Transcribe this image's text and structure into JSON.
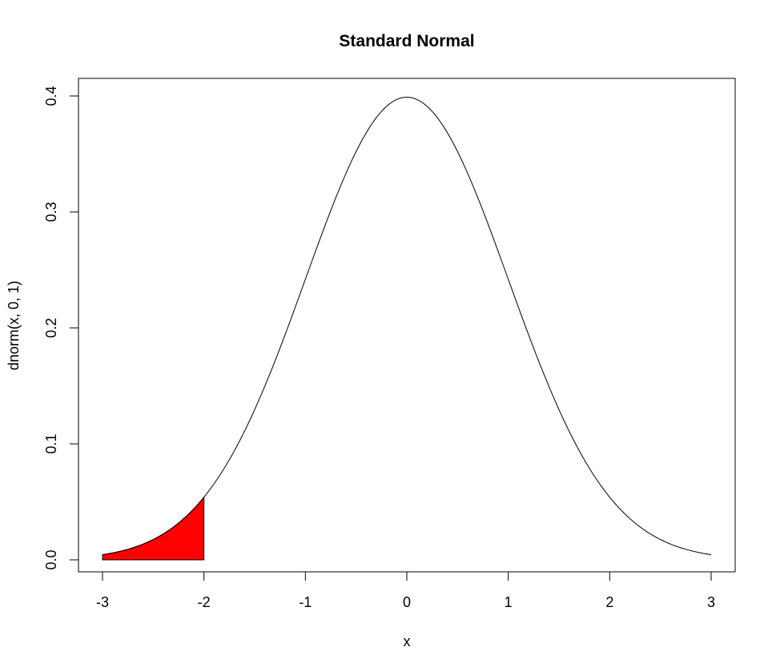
{
  "chart_data": {
    "type": "line",
    "title": "Standard Normal",
    "xlabel": "x",
    "ylabel": "dnorm(x, 0, 1)",
    "xlim": [
      -3,
      3
    ],
    "ylim": [
      0,
      0.4
    ],
    "x_ticks": [
      -3,
      -2,
      -1,
      0,
      1,
      2,
      3
    ],
    "x_tick_labels": [
      "-3",
      "-2",
      "-1",
      "0",
      "1",
      "2",
      "3"
    ],
    "y_ticks": [
      0.0,
      0.1,
      0.2,
      0.3,
      0.4
    ],
    "y_tick_labels": [
      "0.0",
      "0.1",
      "0.2",
      "0.3",
      "0.4"
    ],
    "grid": false,
    "series": [
      {
        "x": [
          -3.0,
          -2.75,
          -2.5,
          -2.25,
          -2.0,
          -1.75,
          -1.5,
          -1.25,
          -1.0,
          -0.75,
          -0.5,
          -0.25,
          0.0,
          0.25,
          0.5,
          0.75,
          1.0,
          1.25,
          1.5,
          1.75,
          2.0,
          2.25,
          2.5,
          2.75,
          3.0
        ],
        "values": [
          0.0044,
          0.0091,
          0.0175,
          0.0317,
          0.054,
          0.0863,
          0.1295,
          0.1826,
          0.242,
          0.3011,
          0.3521,
          0.3867,
          0.3989,
          0.3867,
          0.3521,
          0.3011,
          0.242,
          0.1826,
          0.1295,
          0.0863,
          0.054,
          0.0317,
          0.0175,
          0.0091,
          0.0044
        ],
        "color": "#000000"
      }
    ],
    "shaded_region": {
      "x_from": -3,
      "x_to": -2,
      "color": "#ff0000"
    }
  }
}
